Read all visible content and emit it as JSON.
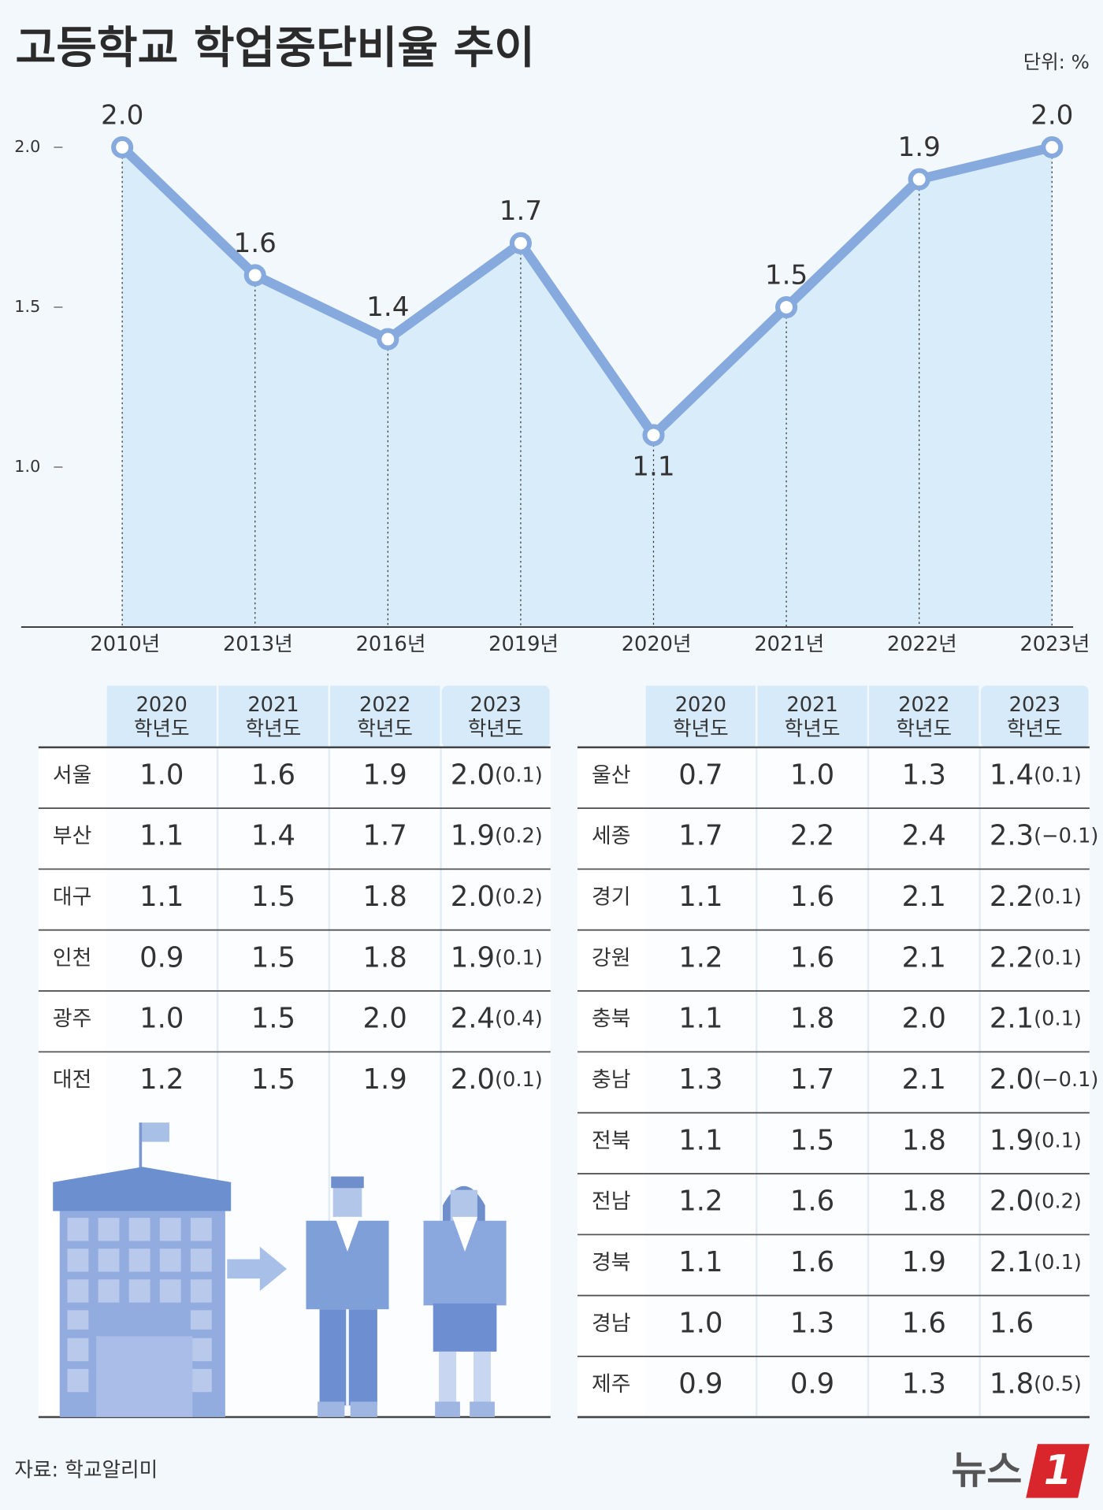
{
  "chart_data": {
    "type": "line",
    "title": "고등학교 학업중단비율 추이",
    "unit_label": "단위: %",
    "categories": [
      "2010년",
      "2013년",
      "2016년",
      "2019년",
      "2020년",
      "2021년",
      "2022년",
      "2023년"
    ],
    "values": [
      2.0,
      1.6,
      1.4,
      1.7,
      1.1,
      1.5,
      1.9,
      2.0
    ],
    "value_labels": [
      "2.0",
      "1.6",
      "1.4",
      "1.7",
      "1.1",
      "1.5",
      "1.9",
      "2.0"
    ],
    "color": "#86aade",
    "area_color": "#d9ecfa",
    "ylim": [
      0.5,
      2.2
    ],
    "yticks": [
      {
        "value": 1,
        "label": "1.0"
      },
      1.5,
      {
        "value": 2,
        "label": "2.0"
      }
    ],
    "grid": false
  },
  "tables": [
    {
      "columns": [
        {
          "year": "2020",
          "label": "학년도"
        },
        {
          "year": "2021",
          "label": "학년도"
        },
        {
          "year": "2022",
          "label": "학년도"
        },
        {
          "year": "2023",
          "label": "학년도"
        }
      ],
      "rows": [
        {
          "region": "서울",
          "values": [
            "1.0",
            "1.6",
            "1.9",
            "2.0"
          ],
          "change": "(0.1)"
        },
        {
          "region": "부산",
          "values": [
            "1.1",
            "1.4",
            "1.7",
            "1.9"
          ],
          "change": "(0.2)"
        },
        {
          "region": "대구",
          "values": [
            "1.1",
            "1.5",
            "1.8",
            "2.0"
          ],
          "change": "(0.2)"
        },
        {
          "region": "인천",
          "values": [
            "0.9",
            "1.5",
            "1.8",
            "1.9"
          ],
          "change": "(0.1)"
        },
        {
          "region": "광주",
          "values": [
            "1.0",
            "1.5",
            "2.0",
            "2.4"
          ],
          "change": "(0.4)"
        },
        {
          "region": "대전",
          "values": [
            "1.2",
            "1.5",
            "1.9",
            "2.0"
          ],
          "change": "(0.1)"
        }
      ]
    },
    {
      "columns": [
        {
          "year": "2020",
          "label": "학년도"
        },
        {
          "year": "2021",
          "label": "학년도"
        },
        {
          "year": "2022",
          "label": "학년도"
        },
        {
          "year": "2023",
          "label": "학년도"
        }
      ],
      "rows": [
        {
          "region": "울산",
          "values": [
            "0.7",
            "1.0",
            "1.3",
            "1.4"
          ],
          "change": "(0.1)"
        },
        {
          "region": "세종",
          "values": [
            "1.7",
            "2.2",
            "2.4",
            "2.3"
          ],
          "change": "(−0.1)"
        },
        {
          "region": "경기",
          "values": [
            "1.1",
            "1.6",
            "2.1",
            "2.2"
          ],
          "change": "(0.1)"
        },
        {
          "region": "강원",
          "values": [
            "1.2",
            "1.6",
            "2.1",
            "2.2"
          ],
          "change": "(0.1)"
        },
        {
          "region": "충북",
          "values": [
            "1.1",
            "1.8",
            "2.0",
            "2.1"
          ],
          "change": "(0.1)"
        },
        {
          "region": "충남",
          "values": [
            "1.3",
            "1.7",
            "2.1",
            "2.0"
          ],
          "change": "(−0.1)"
        },
        {
          "region": "전북",
          "values": [
            "1.1",
            "1.5",
            "1.8",
            "1.9"
          ],
          "change": "(0.1)"
        },
        {
          "region": "전남",
          "values": [
            "1.2",
            "1.6",
            "1.8",
            "2.0"
          ],
          "change": "(0.2)"
        },
        {
          "region": "경북",
          "values": [
            "1.1",
            "1.6",
            "1.9",
            "2.1"
          ],
          "change": "(0.1)"
        },
        {
          "region": "경남",
          "values": [
            "1.0",
            "1.3",
            "1.6",
            "1.6"
          ]
        },
        {
          "region": "제주",
          "values": [
            "0.9",
            "0.9",
            "1.3",
            "1.8"
          ],
          "change": "(0.5)"
        }
      ]
    }
  ],
  "source": "자료: 학교알리미",
  "logo": {
    "text": "뉴스",
    "number": "1"
  }
}
